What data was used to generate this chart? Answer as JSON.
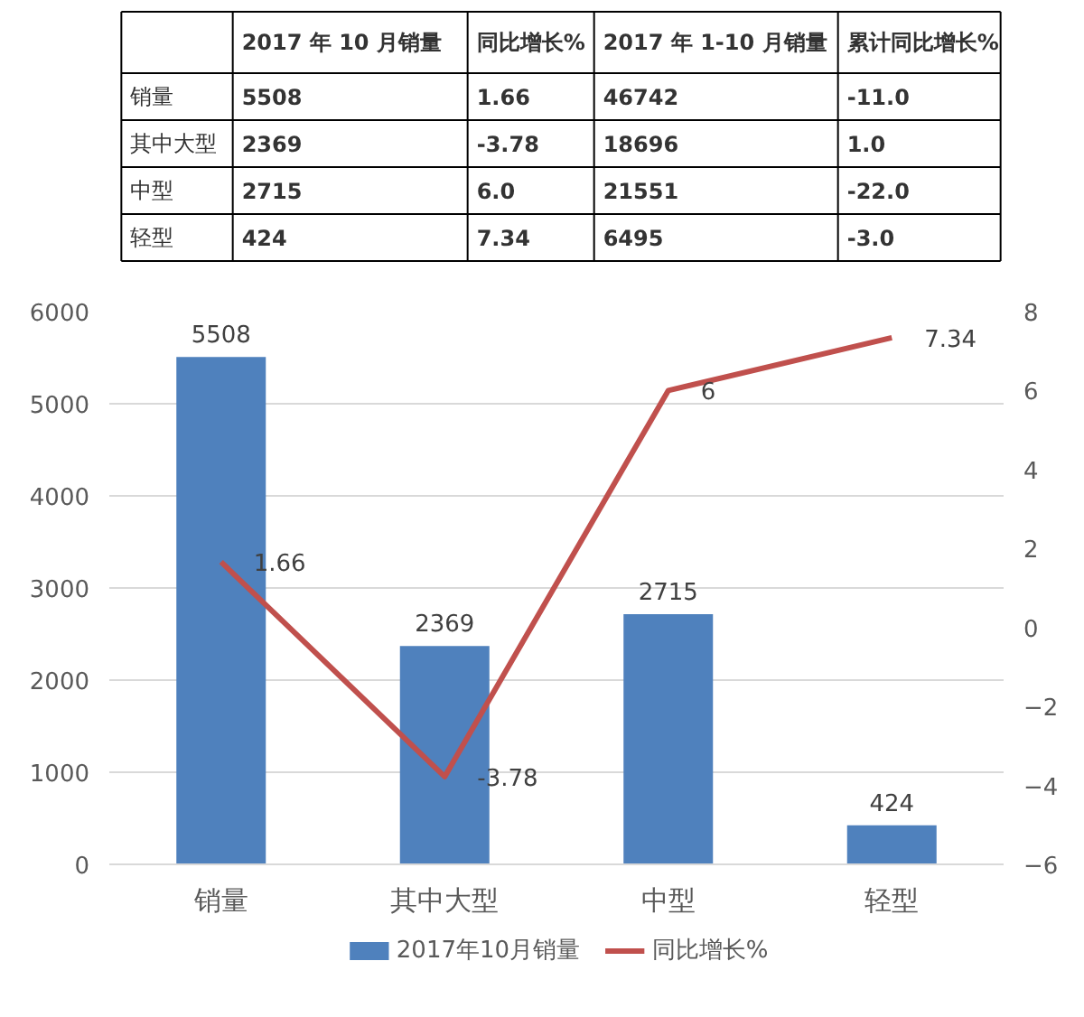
{
  "chart_data": [
    {
      "type": "other",
      "annotations": [
        "2017 年 10 月销量",
        "同比增长%",
        "2017 年 1-10 月销量",
        "累计同比增长%",
        "销量",
        "5508",
        "1.66",
        "46742",
        "-11.0",
        "其中大型",
        "2369",
        "-3.78",
        "18696",
        "1.0",
        "中型",
        "2715",
        "6.0",
        "21551",
        "-22.0",
        "轻型",
        "424",
        "7.34",
        "6495",
        "-3.0"
      ]
    },
    {
      "type": "bar",
      "categories": [
        "销量",
        "其中大型",
        "中型",
        "轻型"
      ],
      "series": [
        {
          "name": "2017年10月销量",
          "color": "#4f81bd",
          "values": [
            5508,
            2369,
            2715,
            424
          ]
        },
        {
          "name": "同比增长%",
          "type": "line",
          "axis": "y2",
          "color": "#c0504d",
          "values": [
            1.66,
            -3.78,
            6,
            7.34
          ]
        }
      ],
      "ylim": [
        0,
        6000
      ],
      "yticks": [
        0,
        1000,
        2000,
        3000,
        4000,
        5000,
        6000
      ],
      "y2lim": [
        -6,
        8
      ],
      "y2ticks": [
        -6,
        -4,
        -2,
        0,
        2,
        4,
        6,
        8
      ],
      "grid": "y",
      "legend": "bottom",
      "data_labels": true
    }
  ]
}
